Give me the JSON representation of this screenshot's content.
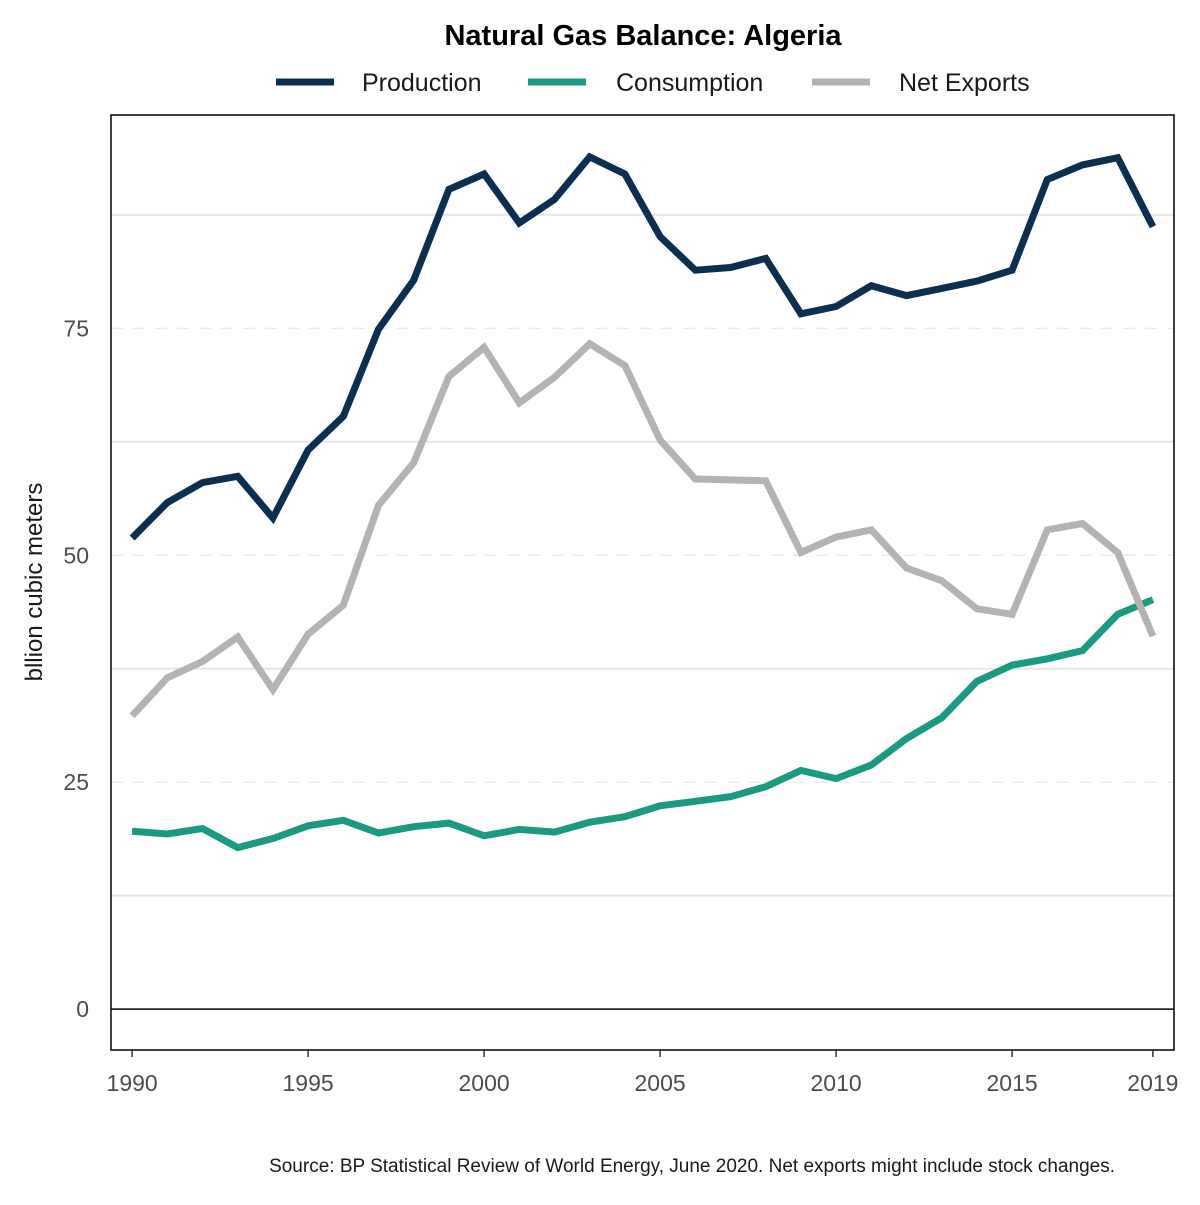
{
  "chart_data": {
    "type": "line",
    "title": "Natural Gas Balance: Algeria",
    "ylabel": "bllion cubic meters",
    "xlabel": "",
    "caption": "Source: BP Statistical Review of World Energy, June 2020. Net exports might include stock changes.",
    "x": [
      1990,
      1991,
      1992,
      1993,
      1994,
      1995,
      1996,
      1997,
      1998,
      1999,
      2000,
      2001,
      2002,
      2003,
      2004,
      2005,
      2006,
      2007,
      2008,
      2009,
      2010,
      2011,
      2012,
      2013,
      2014,
      2015,
      2016,
      2017,
      2018,
      2019
    ],
    "xlim": [
      1989.4,
      2019.6
    ],
    "ylim": [
      -4.5,
      98.5
    ],
    "x_ticks": [
      1990,
      1995,
      2000,
      2005,
      2010,
      2015,
      2019
    ],
    "y_ticks": [
      0,
      25,
      50,
      75
    ],
    "y_minor_gridlines": [
      12.5,
      37.5,
      62.5,
      87.5
    ],
    "grid": true,
    "legend_position": "top",
    "series": [
      {
        "name": "Production",
        "color": "#0d2f4f",
        "values": [
          51.9,
          55.8,
          58.0,
          58.7,
          54.1,
          61.6,
          65.3,
          74.9,
          80.3,
          90.3,
          92.0,
          86.6,
          89.2,
          93.9,
          92.0,
          85.1,
          81.4,
          81.7,
          82.7,
          76.6,
          77.4,
          79.7,
          78.6,
          79.4,
          80.2,
          81.4,
          91.4,
          93.0,
          93.8,
          86.2
        ]
      },
      {
        "name": "Consumption",
        "color": "#1a9a80",
        "values": [
          19.6,
          19.3,
          19.9,
          17.8,
          18.8,
          20.2,
          20.8,
          19.4,
          20.1,
          20.5,
          19.1,
          19.8,
          19.5,
          20.6,
          21.2,
          22.4,
          22.9,
          23.4,
          24.5,
          26.3,
          25.4,
          26.9,
          29.8,
          32.1,
          36.1,
          37.9,
          38.6,
          39.5,
          43.5,
          45.1
        ]
      },
      {
        "name": "Net Exports",
        "color": "#b3b3b3",
        "values": [
          32.3,
          36.5,
          38.3,
          41.0,
          35.2,
          41.3,
          44.5,
          55.5,
          60.2,
          69.7,
          72.9,
          66.8,
          69.6,
          73.3,
          70.9,
          62.7,
          58.4,
          58.3,
          58.2,
          50.3,
          52.0,
          52.8,
          48.6,
          47.2,
          44.1,
          43.5,
          52.8,
          53.5,
          50.3,
          41.1
        ]
      }
    ]
  }
}
